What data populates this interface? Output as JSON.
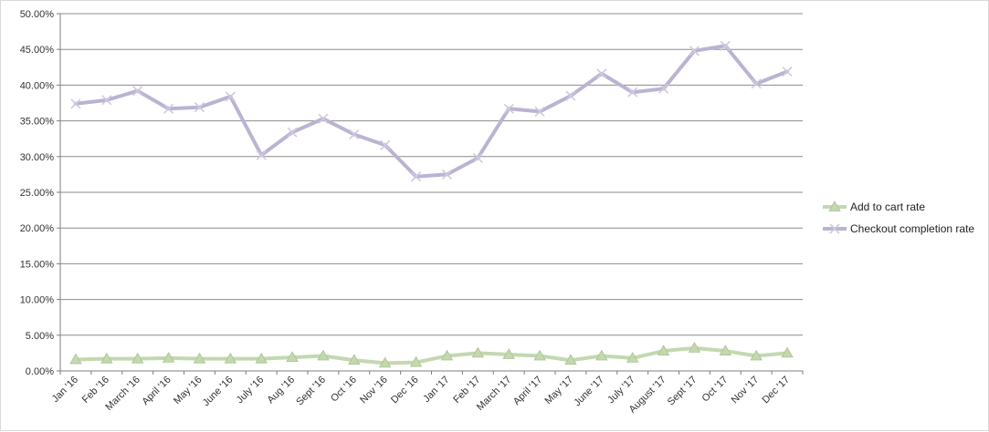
{
  "chart_data": {
    "type": "line",
    "categories": [
      "Jan '16",
      "Feb '16",
      "March '16",
      "April '16",
      "May '16",
      "June '16",
      "July '16",
      "Aug '16",
      "Sept '16",
      "Oct '16",
      "Nov '16",
      "Dec '16",
      "Jan '17",
      "Feb '17",
      "March '17",
      "April '17",
      "May '17",
      "June '17",
      "July '17",
      "August '17",
      "Sept '17",
      "Oct '17",
      "Nov '17",
      "Dec '17"
    ],
    "series": [
      {
        "name": "Add to cart rate",
        "color": "#c4d8b0",
        "marker": "triangle",
        "values": [
          1.6,
          1.7,
          1.7,
          1.8,
          1.7,
          1.7,
          1.7,
          1.9,
          2.1,
          1.5,
          1.1,
          1.2,
          2.1,
          2.5,
          2.3,
          2.1,
          1.5,
          2.1,
          1.8,
          2.8,
          3.2,
          2.8,
          2.1,
          2.5
        ]
      },
      {
        "name": "Checkout completion rate",
        "color": "#bcb3d2",
        "marker": "x",
        "values": [
          37.4,
          37.9,
          39.2,
          36.7,
          36.9,
          38.4,
          30.2,
          33.4,
          35.3,
          33.1,
          31.6,
          27.2,
          27.5,
          29.8,
          36.7,
          36.3,
          38.5,
          41.6,
          39.0,
          39.5,
          44.8,
          45.5,
          40.2,
          41.9
        ]
      }
    ],
    "yticks": [
      "0.00%",
      "5.00%",
      "10.00%",
      "15.00%",
      "20.00%",
      "25.00%",
      "30.00%",
      "35.00%",
      "40.00%",
      "45.00%",
      "50.00%"
    ],
    "ylim": [
      0,
      50
    ],
    "grid": true,
    "legend_position": "right"
  }
}
